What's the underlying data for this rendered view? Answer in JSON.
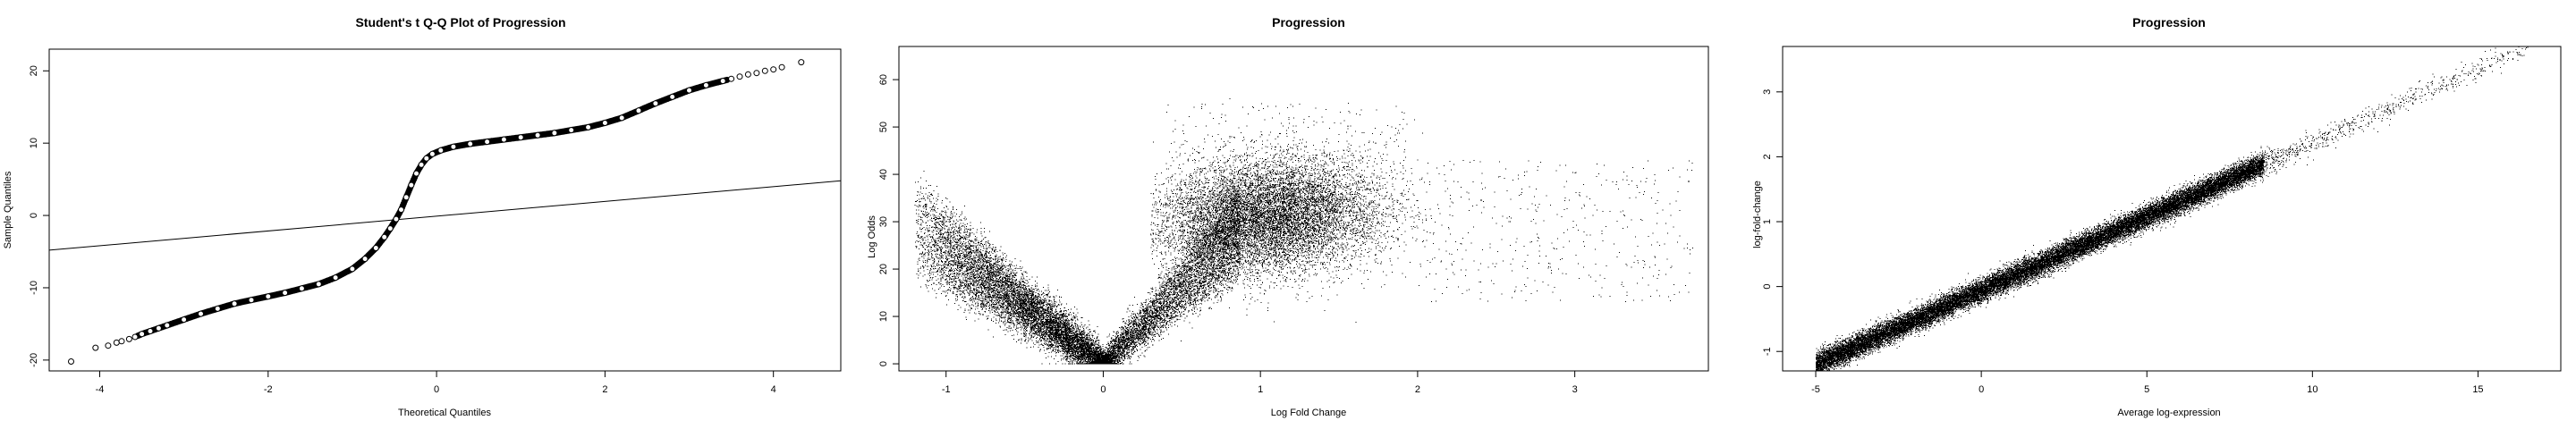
{
  "chart_data": [
    {
      "type": "scatter",
      "title": "Student's t Q-Q Plot of Progression",
      "xlabel": "Theoretical Quantiles",
      "ylabel": "Sample Quantiles",
      "xlim": [
        -4.6,
        4.8
      ],
      "ylim": [
        -21.5,
        23
      ],
      "xticks": [
        -4,
        -2,
        0,
        2,
        4
      ],
      "yticks": [
        -20,
        -10,
        0,
        10,
        20
      ],
      "marker": "open-circle",
      "reference_line": {
        "x": [
          -4.6,
          4.8
        ],
        "y": [
          -4.8,
          4.8
        ]
      },
      "series": [
        {
          "x": [
            -4.34,
            -4.05,
            -3.9,
            -3.8,
            -3.74,
            -3.65,
            -3.58,
            -3.5,
            -3.4,
            -3.3,
            -3.2,
            -3.0,
            -2.8,
            -2.6,
            -2.4,
            -2.2,
            -2.0,
            -1.8,
            -1.6,
            -1.4,
            -1.2,
            -1.0,
            -0.85,
            -0.72,
            -0.62,
            -0.55,
            -0.48,
            -0.42,
            -0.36,
            -0.3,
            -0.24,
            -0.18,
            -0.12,
            -0.05,
            0.05,
            0.2,
            0.4,
            0.6,
            0.8,
            1.0,
            1.2,
            1.4,
            1.6,
            1.8,
            2.0,
            2.2,
            2.4,
            2.6,
            2.8,
            3.0,
            3.2,
            3.4,
            3.5,
            3.6,
            3.7,
            3.8,
            3.9,
            4.0,
            4.1,
            4.33
          ],
          "y": [
            -20.2,
            -18.3,
            -18.0,
            -17.6,
            -17.4,
            -17.1,
            -16.8,
            -16.4,
            -16.0,
            -15.6,
            -15.2,
            -14.4,
            -13.6,
            -12.9,
            -12.2,
            -11.7,
            -11.2,
            -10.7,
            -10.1,
            -9.5,
            -8.6,
            -7.4,
            -6.0,
            -4.5,
            -3.0,
            -1.8,
            -0.5,
            0.8,
            2.5,
            4.2,
            5.8,
            7.0,
            7.9,
            8.5,
            9.0,
            9.5,
            9.9,
            10.2,
            10.5,
            10.8,
            11.1,
            11.4,
            11.8,
            12.2,
            12.8,
            13.5,
            14.5,
            15.5,
            16.4,
            17.3,
            18.0,
            18.6,
            18.9,
            19.2,
            19.5,
            19.7,
            20.0,
            20.2,
            20.5,
            21.2
          ]
        }
      ]
    },
    {
      "type": "scatter",
      "title": "Progression",
      "xlabel": "Log Fold Change",
      "ylabel": "Log Odds",
      "xlim": [
        -1.3,
        3.85
      ],
      "ylim": [
        -1.5,
        67
      ],
      "xticks": [
        -1,
        0,
        1,
        2,
        3
      ],
      "yticks": [
        0,
        10,
        20,
        30,
        40,
        50,
        60
      ],
      "marker": "dot",
      "density_model": {
        "count": 26000,
        "left_arm": {
          "x_min": -1.2,
          "x_max": -0.02,
          "y_at_x_max": 0,
          "slope": 30
        },
        "right_arm": {
          "x_min": 0.02,
          "x_max": 0.85,
          "y_at_x_min": 0,
          "slope": 38
        },
        "right_cloud": {
          "center_x": 1.05,
          "center_y": 31,
          "spread_x": 0.45,
          "spread_y": 6
        },
        "tail_max_x": 3.75
      }
    },
    {
      "type": "scatter",
      "title": "Progression",
      "xlabel": "Average log-expression",
      "ylabel": "log-fold-change",
      "xlim": [
        -6.0,
        17.5
      ],
      "ylim": [
        -1.3,
        3.7
      ],
      "xticks": [
        -5,
        0,
        5,
        10,
        15
      ],
      "yticks": [
        -1,
        0,
        1,
        2,
        3
      ],
      "marker": "dot",
      "density_model": {
        "count": 26000,
        "line": {
          "x0": -5,
          "y0": -1.2,
          "x1": 16.5,
          "y1": 3.7
        },
        "core_x_range": [
          -5,
          8.5
        ],
        "tail_x_max": 16.5,
        "noise_y": 0.09
      }
    }
  ]
}
